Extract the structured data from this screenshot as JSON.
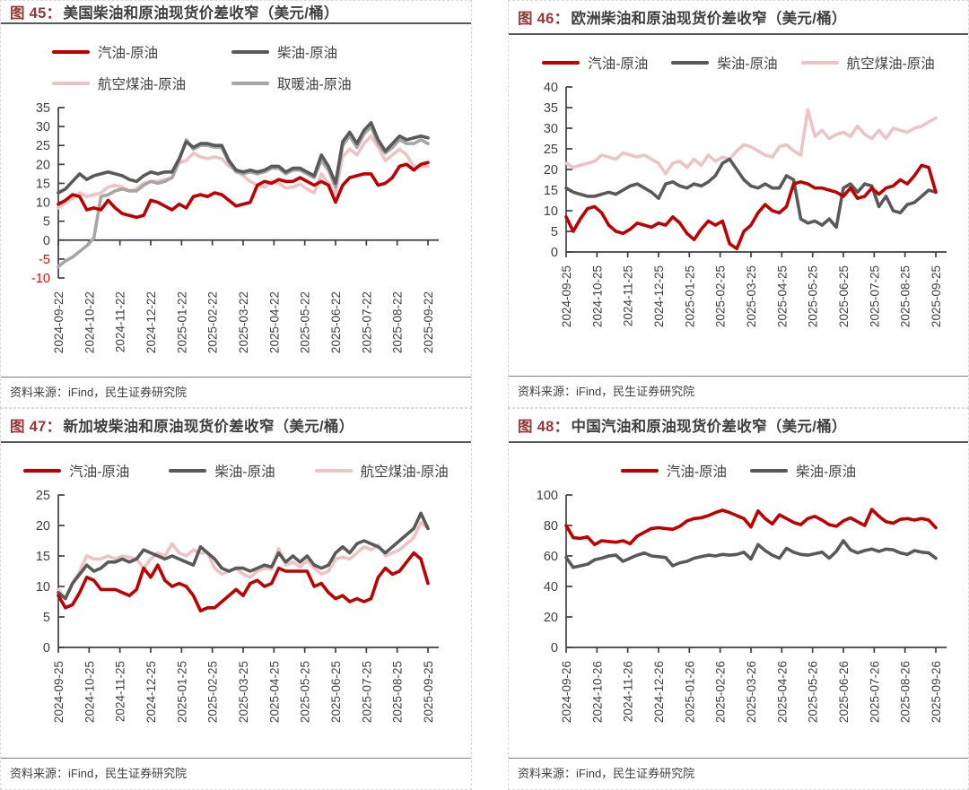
{
  "colors": {
    "red": "#c00000",
    "dark_gray": "#595959",
    "pink": "#eec3c3",
    "gray": "#a6a6a6",
    "axis": "#3f3f3f",
    "negative_tick": "#ff0000",
    "title_prefix": "#953735",
    "title_text": "#3f3f3f"
  },
  "source_label": "资料来源：iFind，民生证券研究院",
  "panels": [
    {
      "num": "图 45：",
      "title": "美国柴油和原油现货价差收窄（美元/桶）"
    },
    {
      "num": "图 46：",
      "title": "欧洲柴油和原油现货价差收窄（美元/桶）"
    },
    {
      "num": "图 47：",
      "title": "新加坡柴油和原油现货价差收窄（美元/桶）"
    },
    {
      "num": "图 48：",
      "title": "中国汽油和原油现货价差收窄（美元/桶）"
    }
  ],
  "chart_data": [
    {
      "type": "line",
      "title": "图 45：美国柴油和原油现货价差收窄（美元/桶）",
      "x_tick_labels": [
        "2024-09-22",
        "2024-10-22",
        "2024-11-22",
        "2024-12-22",
        "2025-01-22",
        "2025-02-22",
        "2025-03-22",
        "2025-04-22",
        "2025-05-22",
        "2025-06-22",
        "2025-07-22",
        "2025-08-22",
        "2025-09-22"
      ],
      "ylim": [
        -10,
        35
      ],
      "ytick_step": 5,
      "negative_tick_color": "#ff0000",
      "grid": false,
      "legend_position": "top",
      "draw_order": [
        2,
        3,
        1,
        0
      ],
      "series": [
        {
          "name": "汽油-原油",
          "color": "#c00000",
          "values": [
            9.5,
            10.5,
            12,
            11.5,
            8,
            8.5,
            8,
            10.5,
            8.5,
            7,
            6.5,
            6,
            6.5,
            10.5,
            10,
            9,
            8,
            9.5,
            8.5,
            11.5,
            12,
            11.5,
            12.5,
            12,
            10.5,
            9,
            9.5,
            10,
            14.5,
            15.5,
            15,
            16,
            15.5,
            15.5,
            16.5,
            15.5,
            14.5,
            15.5,
            14.5,
            10,
            14.5,
            16.5,
            17,
            17.5,
            17.5,
            14.5,
            15,
            16.5,
            19.5,
            20,
            18.5,
            20,
            20.5
          ]
        },
        {
          "name": "柴油-原油",
          "color": "#595959",
          "values": [
            12.5,
            13.5,
            15.5,
            17.5,
            16,
            17,
            17.5,
            18,
            17.5,
            17,
            16,
            15.5,
            17,
            18,
            17.5,
            18,
            18,
            21.5,
            26,
            24.5,
            25.5,
            25.5,
            25,
            25,
            21,
            18.5,
            18,
            18.5,
            18,
            18.5,
            19.5,
            19.5,
            18,
            19,
            19,
            18,
            17,
            22.5,
            19.5,
            15,
            26,
            28.5,
            25.5,
            29,
            31,
            26.5,
            23.5,
            25.5,
            27.5,
            26.5,
            27,
            27.5,
            27
          ]
        },
        {
          "name": "航空煤油-原油",
          "color": "#eec3c3",
          "values": [
            8.5,
            10,
            11,
            12.5,
            11.5,
            12,
            12.5,
            14,
            14.5,
            14,
            13,
            13.5,
            15,
            15.5,
            15.5,
            16,
            16.5,
            20.5,
            21,
            23,
            22,
            21.5,
            22,
            21.5,
            19.5,
            18.5,
            17,
            15.5,
            14.5,
            14,
            15.5,
            15,
            13.8,
            14,
            14.8,
            13.5,
            12.5,
            17.5,
            15,
            12.3,
            22,
            24,
            22.5,
            25.5,
            27.5,
            24.5,
            21,
            22.5,
            24,
            22.5,
            19.5,
            19.5,
            19.5
          ]
        },
        {
          "name": "取暖油-原油",
          "color": "#a6a6a6",
          "values": [
            -7,
            -5.5,
            -4.5,
            -3,
            -1.5,
            0.5,
            11.5,
            12,
            13,
            13.5,
            13,
            13,
            14.5,
            15.5,
            15,
            15.5,
            16.5,
            21,
            26.5,
            24,
            25,
            25,
            24.5,
            24.5,
            20.5,
            18,
            17.5,
            18,
            17.5,
            18,
            19,
            19,
            17.5,
            18.5,
            18.5,
            17.5,
            16.5,
            21,
            18.5,
            14,
            25,
            27.5,
            24.5,
            28,
            30,
            25.5,
            23,
            24.5,
            26.5,
            25.5,
            25.5,
            26.5,
            25.5
          ]
        }
      ]
    },
    {
      "type": "line",
      "title": "图 46：欧洲柴油和原油现货价差收窄（美元/桶）",
      "x_tick_labels": [
        "2024-09-25",
        "2024-10-25",
        "2024-11-25",
        "2024-12-25",
        "2025-01-25",
        "2025-02-25",
        "2025-03-25",
        "2025-04-25",
        "2025-05-25",
        "2025-06-25",
        "2025-07-25",
        "2025-08-25",
        "2025-09-25"
      ],
      "ylim": [
        0,
        40
      ],
      "ytick_step": 5,
      "grid": false,
      "legend_position": "top",
      "draw_order": [
        2,
        1,
        0
      ],
      "series": [
        {
          "name": "汽油-原油",
          "color": "#c00000",
          "values": [
            8.5,
            5,
            8,
            10.5,
            11,
            9.5,
            6.5,
            5,
            4.5,
            5.5,
            7,
            6.5,
            6,
            7,
            6.5,
            8.5,
            7,
            4.5,
            3,
            5.5,
            7.5,
            6.5,
            7.5,
            2,
            0.8,
            5,
            6.5,
            9.5,
            11.5,
            10,
            9.5,
            11,
            16.5,
            17,
            16.5,
            15.5,
            15.5,
            15,
            14.5,
            13.5,
            15.5,
            13,
            13.5,
            15.5,
            14,
            15.5,
            16,
            17.5,
            16.5,
            18.5,
            21,
            20.5,
            14.5
          ]
        },
        {
          "name": "柴油-原油",
          "color": "#595959",
          "values": [
            15.5,
            14.5,
            14,
            13.5,
            13.5,
            14,
            14.5,
            14,
            15,
            16,
            16.5,
            15.5,
            14.5,
            13,
            16.5,
            17,
            16,
            15.5,
            16.5,
            16,
            17,
            18.5,
            21.5,
            22.5,
            20,
            17.5,
            16,
            15.5,
            16.5,
            15.5,
            15.5,
            18.5,
            17.5,
            8,
            7,
            7.5,
            6.5,
            8,
            6,
            15.5,
            16.5,
            14.5,
            16.5,
            16,
            11,
            13.5,
            10,
            9.5,
            11.5,
            12,
            13.5,
            15,
            14.5
          ]
        },
        {
          "name": "航空煤油-原油",
          "color": "#eec3c3",
          "values": [
            21.5,
            20.5,
            21,
            21.5,
            22,
            23.5,
            23,
            22.5,
            24,
            23.5,
            23,
            23.5,
            22.5,
            21.5,
            19,
            21.5,
            22,
            20.5,
            22.5,
            21,
            23.5,
            22,
            23,
            22.5,
            24.5,
            26,
            25.5,
            24.5,
            23.5,
            23,
            25.5,
            26,
            24.5,
            23.5,
            34.5,
            28,
            29.5,
            27.5,
            28.5,
            29,
            28,
            30.5,
            28.5,
            27.5,
            29.5,
            27.5,
            30,
            29.5,
            29,
            30,
            30.5,
            31.5,
            32.5
          ]
        }
      ]
    },
    {
      "type": "line",
      "title": "图 47：新加坡柴油和原油现货价差收窄（美元/桶）",
      "x_tick_labels": [
        "2024-09-25",
        "2024-10-25",
        "2024-11-25",
        "2024-12-25",
        "2025-01-25",
        "2025-02-25",
        "2025-03-25",
        "2025-04-25",
        "2025-05-25",
        "2025-06-25",
        "2025-07-25",
        "2025-08-25",
        "2025-09-25"
      ],
      "ylim": [
        0,
        25
      ],
      "ytick_step": 5,
      "grid": false,
      "legend_position": "top",
      "draw_order": [
        2,
        1,
        0
      ],
      "series": [
        {
          "name": "汽油-原油",
          "color": "#c00000",
          "values": [
            8.5,
            6.5,
            7,
            9,
            11.5,
            11,
            9.5,
            9.5,
            9.5,
            9,
            8.5,
            9.5,
            13,
            11.5,
            13.5,
            11,
            10,
            10.5,
            10,
            8.5,
            6,
            6.5,
            6.5,
            7.5,
            8.5,
            9.5,
            8.5,
            10.5,
            11,
            10,
            10.5,
            13,
            12.5,
            12.5,
            12.5,
            12.5,
            10,
            10.5,
            9,
            8,
            8.5,
            7.5,
            8,
            7.5,
            8,
            11.5,
            13,
            12,
            12.5,
            14,
            15.5,
            14.5,
            10.5
          ]
        },
        {
          "name": "柴油-原油",
          "color": "#595959",
          "values": [
            9,
            8,
            10.5,
            12,
            13.5,
            12.5,
            13,
            14,
            14,
            14.5,
            14,
            14.5,
            16,
            15.5,
            15,
            14.5,
            15,
            14.5,
            14,
            13.5,
            16.5,
            15.5,
            14.5,
            13,
            12.5,
            13,
            13,
            12.5,
            13,
            13.5,
            13.2,
            15.5,
            14,
            15,
            14,
            15,
            13.5,
            13,
            13.5,
            15.5,
            16.5,
            15.5,
            17,
            17.5,
            17,
            16.5,
            15.5,
            16.5,
            17.5,
            18.5,
            19.5,
            22,
            19.5
          ]
        },
        {
          "name": "航空煤油-原油",
          "color": "#eec3c3",
          "values": [
            9.5,
            8,
            10.5,
            12.5,
            15,
            14.5,
            14.5,
            15,
            14.5,
            15,
            14.8,
            14.5,
            13,
            14.5,
            15.5,
            15,
            17,
            15.5,
            15,
            16,
            15.5,
            15.5,
            13,
            12,
            12.5,
            13,
            12,
            11.5,
            12.5,
            13,
            12.8,
            16.2,
            13.5,
            14,
            13.2,
            14.2,
            13,
            12,
            12.5,
            14.5,
            14.8,
            14.5,
            15.5,
            16.5,
            16,
            16.8,
            15,
            15.5,
            16,
            17,
            18,
            20.5,
            19.5
          ]
        }
      ]
    },
    {
      "type": "line",
      "title": "图 48：中国汽油和原油现货价差收窄（美元/桶）",
      "x_tick_labels": [
        "2024-09-26",
        "2024-10-26",
        "2024-11-26",
        "2024-12-26",
        "2025-01-26",
        "2025-02-26",
        "2025-03-26",
        "2025-04-26",
        "2025-05-26",
        "2025-06-26",
        "2025-07-26",
        "2025-08-26",
        "2025-09-26"
      ],
      "ylim": [
        0,
        100
      ],
      "ytick_step": 20,
      "grid": false,
      "legend_position": "top",
      "draw_order": [
        1,
        0
      ],
      "series": [
        {
          "name": "汽油-原油",
          "color": "#c00000",
          "values": [
            80,
            72,
            71.5,
            72.5,
            67.5,
            70,
            69.5,
            69,
            70,
            68,
            73,
            75.5,
            78,
            78.5,
            78,
            77.5,
            79.5,
            83,
            84.5,
            85,
            86.5,
            88.5,
            90,
            88.5,
            86.5,
            84.5,
            79,
            89.5,
            84.5,
            81,
            87,
            84.5,
            82,
            80.5,
            84.5,
            86,
            83.5,
            80.5,
            79.5,
            83,
            85,
            82.5,
            80,
            90.5,
            86,
            82.5,
            81.5,
            84,
            84.5,
            83.5,
            84.5,
            83.5,
            78.5
          ]
        },
        {
          "name": "柴油-原油",
          "color": "#595959",
          "values": [
            59,
            52.5,
            53.5,
            54.5,
            57.5,
            58.5,
            60,
            60.5,
            56.5,
            58.5,
            60.5,
            62,
            60,
            59.5,
            59,
            53.5,
            55.5,
            56.5,
            58.5,
            59.5,
            60.5,
            60,
            61,
            60.5,
            61,
            62.5,
            58,
            67.5,
            63.5,
            60.5,
            58.5,
            65,
            62.5,
            61,
            60.5,
            61.5,
            62.5,
            58.5,
            63,
            70,
            64,
            62,
            63.5,
            64.5,
            63,
            64.5,
            64,
            62,
            61,
            63.5,
            62.5,
            62,
            58.5
          ]
        }
      ]
    }
  ]
}
